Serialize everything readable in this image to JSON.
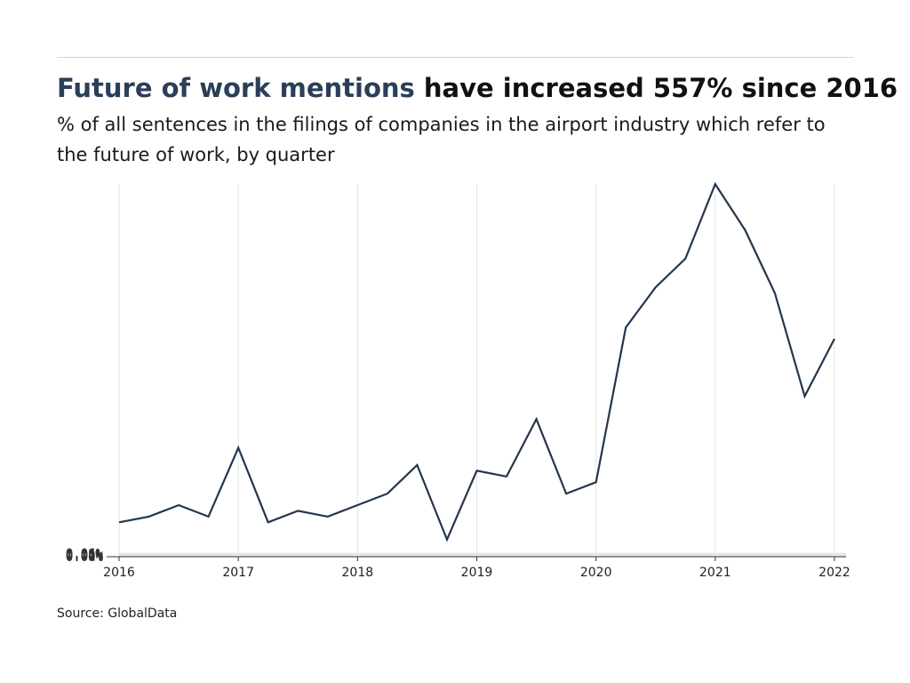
{
  "title": {
    "accent": "Future of work mentions",
    "rest": " have increased 557% since 2016"
  },
  "subtitle": "% of all sentences in the filings of companies in the airport industry which refer to the future of work, by quarter",
  "source": "Source: GlobalData",
  "colors": {
    "line": "#24364d",
    "grid": "#e6e6e6",
    "axis": "#333333"
  },
  "chart_data": {
    "type": "line",
    "title": "Future of work mentions have increased 557% since 2016",
    "subtitle": "% of all sentences in the filings of companies in the airport industry which refer to the future of work, by quarter",
    "xlabel": "",
    "ylabel": "",
    "x_ticks": [
      "2016",
      "2017",
      "2018",
      "2019",
      "2020",
      "2021",
      "2022"
    ],
    "y_ticks": [
      "0.00%",
      "0.01%",
      "0.02%",
      "0.03%",
      "0.04%",
      "0.05%",
      "0.06%"
    ],
    "xlim": [
      "2016-Q1",
      "2022-Q1"
    ],
    "ylim": [
      0,
      0.065
    ],
    "grid": true,
    "series": [
      {
        "x": [
          "2016-Q1",
          "2016-Q2",
          "2016-Q3",
          "2016-Q4",
          "2017-Q1",
          "2017-Q2",
          "2017-Q3",
          "2017-Q4",
          "2018-Q1",
          "2018-Q2",
          "2018-Q3",
          "2018-Q4",
          "2019-Q1",
          "2019-Q2",
          "2019-Q3",
          "2019-Q4",
          "2020-Q1",
          "2020-Q2",
          "2020-Q3",
          "2020-Q4",
          "2021-Q1",
          "2021-Q2",
          "2021-Q3",
          "2021-Q4",
          "2022-Q1"
        ],
        "values": [
          0.006,
          0.007,
          0.009,
          0.007,
          0.019,
          0.006,
          0.008,
          0.007,
          0.009,
          0.011,
          0.016,
          0.003,
          0.015,
          0.014,
          0.024,
          0.011,
          0.013,
          0.04,
          0.047,
          0.052,
          0.065,
          0.057,
          0.046,
          0.028,
          0.038
        ]
      }
    ]
  }
}
